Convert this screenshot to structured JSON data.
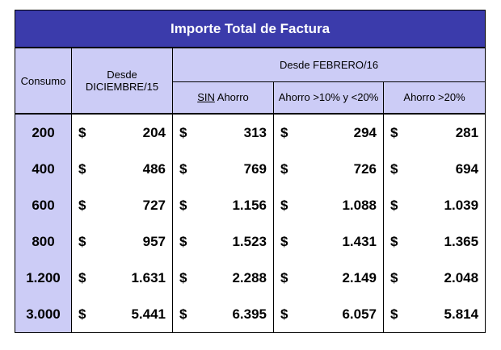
{
  "title": "Importe Total de Factura",
  "header": {
    "consumo": "Consumo",
    "desde_dic": [
      "Desde",
      "DICIEMBRE/15"
    ],
    "desde_feb": "Desde FEBRERO/16",
    "sub": [
      {
        "underlined": "SIN",
        "rest": " Ahorro"
      },
      {
        "text": "Ahorro >10% y <20%"
      },
      {
        "text": "Ahorro >20%"
      }
    ]
  },
  "currency": "$",
  "rows": [
    {
      "consumo": "200",
      "values": [
        "204",
        "313",
        "294",
        "281"
      ]
    },
    {
      "consumo": "400",
      "values": [
        "486",
        "769",
        "726",
        "694"
      ]
    },
    {
      "consumo": "600",
      "values": [
        "727",
        "1.156",
        "1.088",
        "1.039"
      ]
    },
    {
      "consumo": "800",
      "values": [
        "957",
        "1.523",
        "1.431",
        "1.365"
      ]
    },
    {
      "consumo": "1.200",
      "values": [
        "1.631",
        "2.288",
        "2.149",
        "2.048"
      ]
    },
    {
      "consumo": "3.000",
      "values": [
        "5.441",
        "6.395",
        "6.057",
        "5.814"
      ]
    }
  ]
}
